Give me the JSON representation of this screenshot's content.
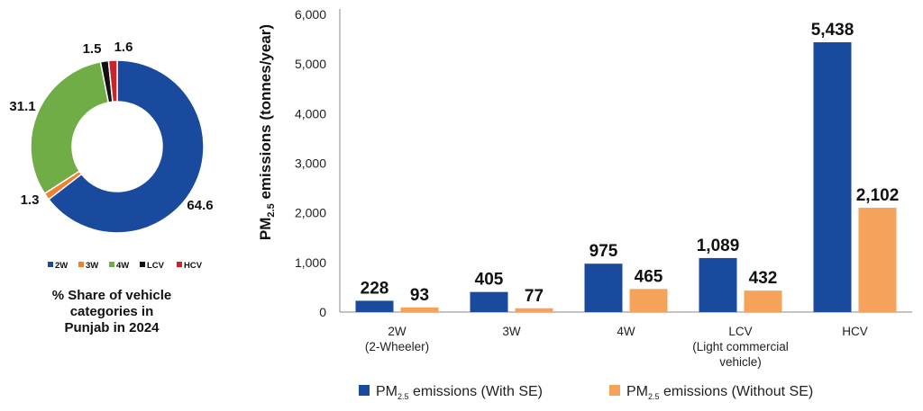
{
  "colors": {
    "with_se": "#1a4a9e",
    "without_se": "#f5a25a",
    "2W": "#1a4a9e",
    "3W": "#f07f30",
    "4W": "#70ad47",
    "LCV": "#111111",
    "HCV": "#c9232c"
  },
  "chart_data": [
    {
      "type": "pie",
      "subtype": "donut",
      "title": "% Share of vehicle categories in Punjab in 2024",
      "title_lines": [
        "% Share of vehicle",
        "categories in",
        "Punjab in 2024"
      ],
      "slices": [
        {
          "label": "2W",
          "value": 64.6,
          "value_label": "64.6"
        },
        {
          "label": "3W",
          "value": 1.3,
          "value_label": "1.3"
        },
        {
          "label": "4W",
          "value": 31.1,
          "value_label": "31.1"
        },
        {
          "label": "LCV",
          "value": 1.5,
          "value_label": "1.5"
        },
        {
          "label": "HCV",
          "value": 1.6,
          "value_label": "1.6"
        }
      ],
      "legend": [
        "2W",
        "3W",
        "4W",
        "LCV",
        "HCV"
      ],
      "legend_position": "bottom"
    },
    {
      "type": "bar",
      "categories": [
        "2W",
        "3W",
        "4W",
        "LCV",
        "HCV"
      ],
      "category_labels": [
        [
          "2W",
          "(2-Wheeler)"
        ],
        [
          "3W"
        ],
        [
          "4W"
        ],
        [
          "LCV",
          "(Light commercial",
          "vehicle)"
        ],
        [
          "HCV"
        ]
      ],
      "series": [
        {
          "name": "PM2.5 emissions (With SE)",
          "name_parts": [
            "PM",
            "2.5",
            " emissions (With SE)"
          ],
          "values": [
            228,
            405,
            975,
            1089,
            5438
          ],
          "value_labels": [
            "228",
            "405",
            "975",
            "1,089",
            "5,438"
          ]
        },
        {
          "name": "PM2.5 emissions (Without SE)",
          "name_parts": [
            "PM",
            "2.5",
            " emissions (Without SE)"
          ],
          "values": [
            93,
            77,
            465,
            432,
            2102
          ],
          "value_labels": [
            "93",
            "77",
            "465",
            "432",
            "2,102"
          ]
        }
      ],
      "ylabel": "PM2.5 emissions (tonnes/year)",
      "ylabel_parts": [
        "PM",
        "2.5",
        " emissions (tonnes/year)"
      ],
      "ylim": [
        0,
        6000
      ],
      "yticks": [
        0,
        1000,
        2000,
        3000,
        4000,
        5000,
        6000
      ],
      "ytick_labels": [
        "0",
        "1,000",
        "2,000",
        "3,000",
        "4,000",
        "5,000",
        "6,000"
      ],
      "grid": false,
      "legend_position": "bottom"
    }
  ]
}
